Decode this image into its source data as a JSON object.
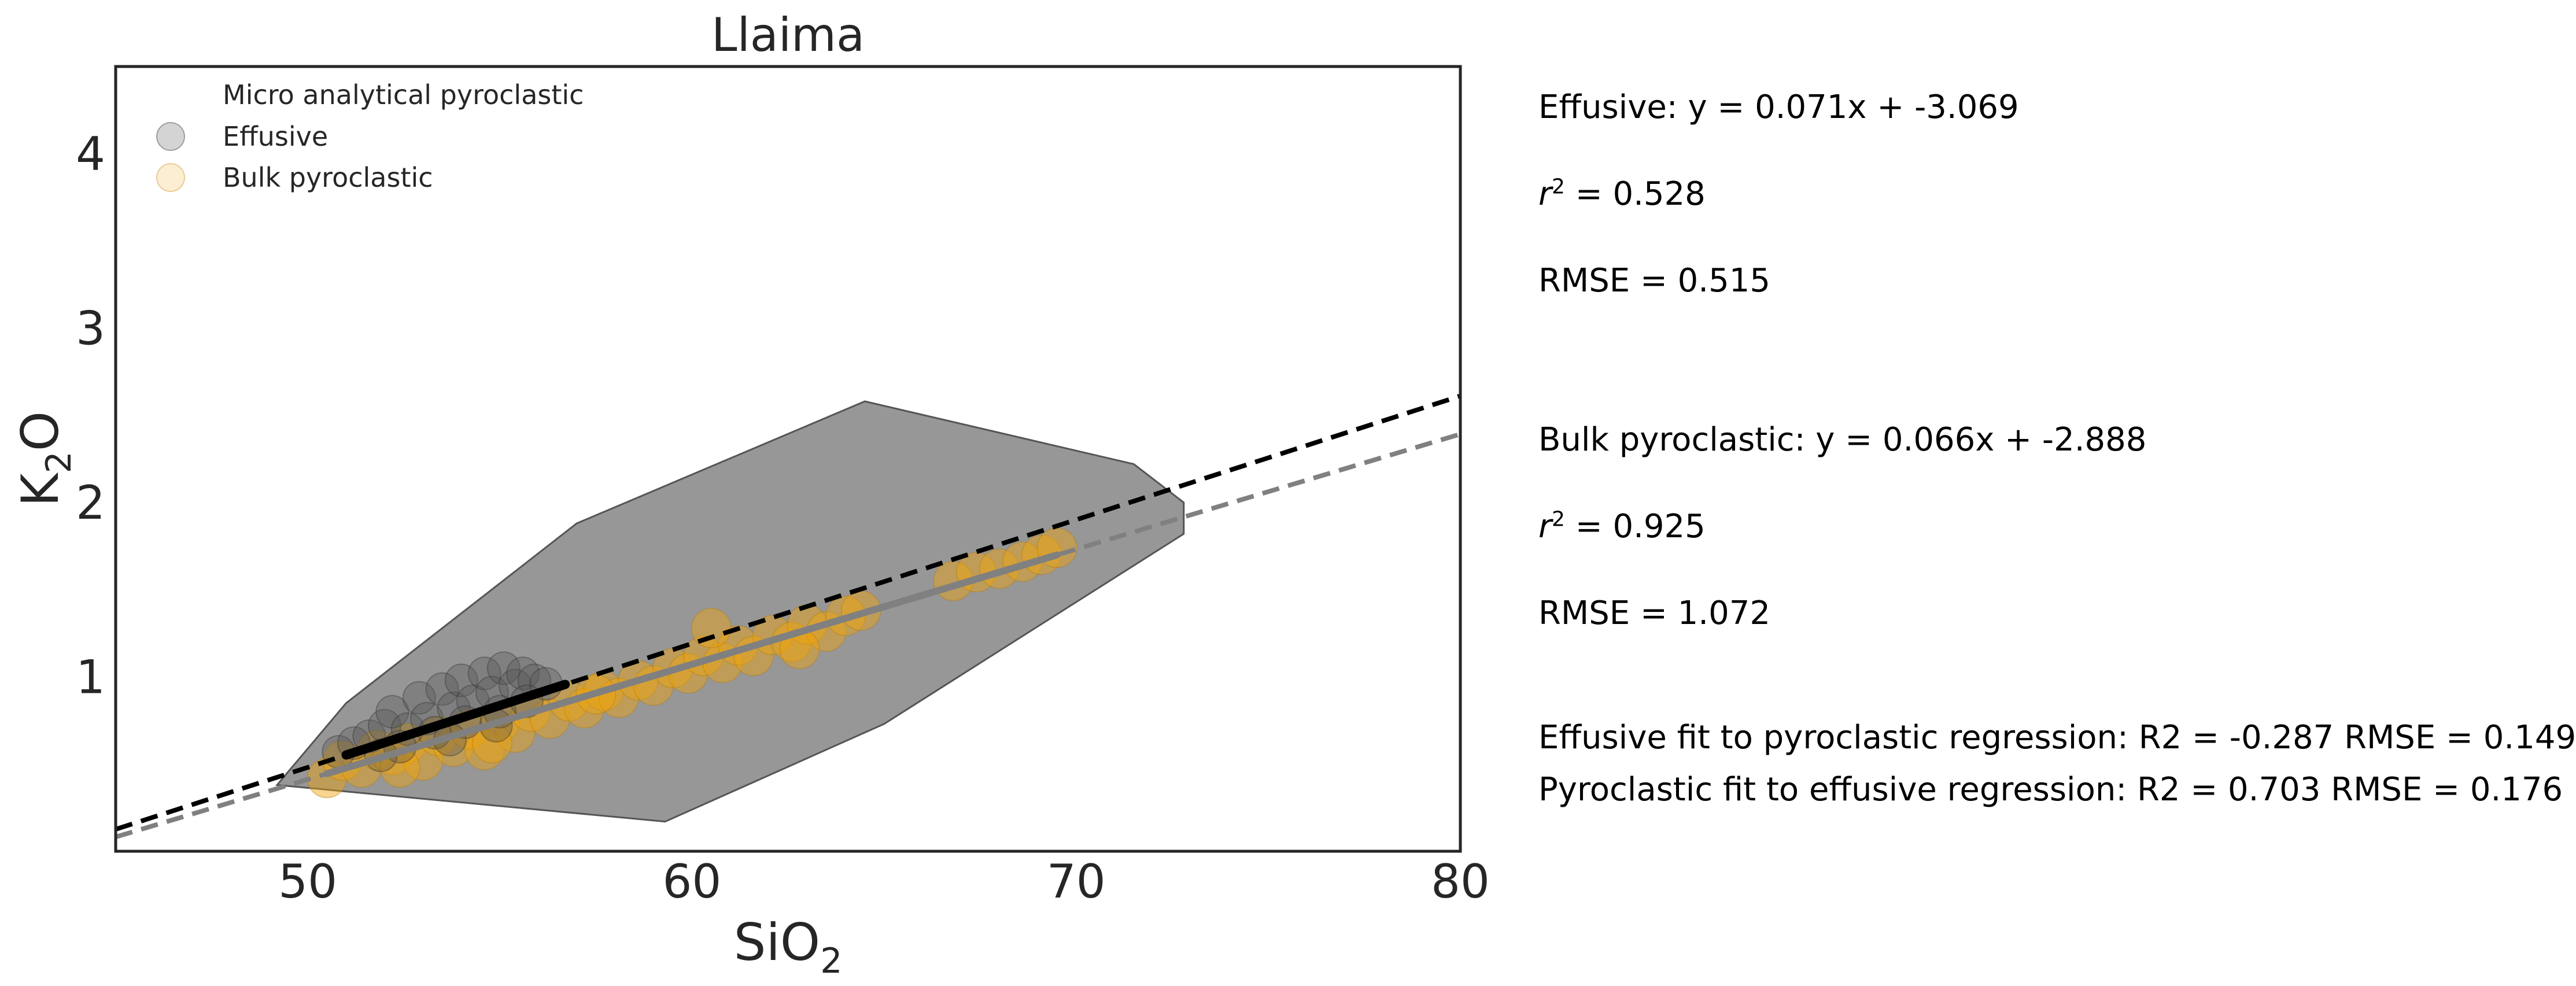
{
  "chart_data": {
    "type": "scatter",
    "title": "Llaima",
    "xlabel": "SiO",
    "xlabel_sub": "2",
    "ylabel": "K",
    "ylabel_sub": "2",
    "ylabel_tail": "O",
    "xlim": [
      45,
      80
    ],
    "ylim": [
      0,
      4.5
    ],
    "x_ticks": [
      50,
      60,
      70,
      80
    ],
    "y_ticks": [
      1,
      2,
      3,
      4
    ],
    "grid": false,
    "legend": {
      "placement": "top-left",
      "entries": [
        "Micro analytical pyroclastic",
        "Effusive",
        "Bulk pyroclastic"
      ]
    },
    "colors": {
      "effusive": "#555555",
      "bulk_pyroclastic": "#f0a30a",
      "hull": "#8c8c8c",
      "effusive_fit": "#000000",
      "pyroclastic_fit": "#808080"
    },
    "micro_pyroclastic_hull": [
      [
        49.2,
        0.38
      ],
      [
        51.0,
        0.85
      ],
      [
        57.0,
        1.88
      ],
      [
        64.5,
        2.58
      ],
      [
        71.5,
        2.22
      ],
      [
        72.8,
        2.0
      ],
      [
        72.8,
        1.82
      ],
      [
        65.0,
        0.73
      ],
      [
        59.3,
        0.17
      ]
    ],
    "series": [
      {
        "name": "Effusive",
        "x": [
          50.8,
          51.2,
          51.6,
          52.0,
          52.2,
          52.6,
          52.9,
          53.1,
          53.5,
          53.8,
          54.0,
          54.3,
          54.6,
          54.8,
          55.1,
          55.4,
          55.6,
          55.9,
          56.2,
          52.4,
          53.3,
          54.1,
          55.0,
          55.7,
          51.9,
          53.7,
          54.9
        ],
        "y": [
          0.57,
          0.62,
          0.66,
          0.72,
          0.8,
          0.7,
          0.88,
          0.76,
          0.93,
          0.82,
          0.98,
          0.86,
          1.02,
          0.91,
          1.05,
          0.95,
          1.02,
          0.98,
          0.96,
          0.6,
          0.68,
          0.74,
          0.8,
          0.86,
          0.55,
          0.64,
          0.72
        ]
      },
      {
        "name": "Bulk pyroclastic",
        "x": [
          50.5,
          50.9,
          51.4,
          51.8,
          52.2,
          52.6,
          53.0,
          53.4,
          53.8,
          54.2,
          54.6,
          55.0,
          55.4,
          55.8,
          56.3,
          56.8,
          57.2,
          57.7,
          58.1,
          58.6,
          59.0,
          59.5,
          59.9,
          60.3,
          60.8,
          61.2,
          61.6,
          62.1,
          62.6,
          63.0,
          63.5,
          64.0,
          64.4,
          66.8,
          67.4,
          68.0,
          68.6,
          69.1,
          69.5,
          52.4,
          54.8,
          57.5,
          60.5,
          62.8
        ],
        "y": [
          0.42,
          0.52,
          0.48,
          0.58,
          0.55,
          0.62,
          0.52,
          0.66,
          0.6,
          0.7,
          0.58,
          0.74,
          0.68,
          0.8,
          0.76,
          0.86,
          0.82,
          0.92,
          0.88,
          0.98,
          0.95,
          1.05,
          1.02,
          1.12,
          1.08,
          1.18,
          1.12,
          1.24,
          1.2,
          1.3,
          1.26,
          1.35,
          1.38,
          1.55,
          1.6,
          1.62,
          1.66,
          1.7,
          1.74,
          0.48,
          0.62,
          0.9,
          1.28,
          1.16
        ]
      }
    ],
    "fits": [
      {
        "name": "Effusive",
        "slope": 0.071,
        "intercept": -3.069,
        "solid_range": [
          51.0,
          56.7
        ],
        "style": "dashed-black"
      },
      {
        "name": "Bulk pyroclastic",
        "slope": 0.066,
        "intercept": -2.888,
        "solid_range": [
          50.5,
          69.5
        ],
        "style": "dashed-gray"
      }
    ]
  },
  "annotations": {
    "effusive_eq": "Effusive: y = 0.071x + -3.069",
    "effusive_r2_label": "r",
    "effusive_r2_sup": "2",
    "effusive_r2_value": " = 0.528",
    "effusive_rmse": "RMSE = 0.515",
    "bulk_eq": "Bulk pyroclastic: y = 0.066x + -2.888",
    "bulk_r2_label": "r",
    "bulk_r2_sup": "2",
    "bulk_r2_value": " = 0.925",
    "bulk_rmse": "RMSE = 1.072",
    "cross_fit_1": "Effusive fit to pyroclastic regression: R2 = -0.287 RMSE = 0.149",
    "cross_fit_2": "Pyroclastic fit to effusive regression: R2 = 0.703 RMSE = 0.176"
  }
}
